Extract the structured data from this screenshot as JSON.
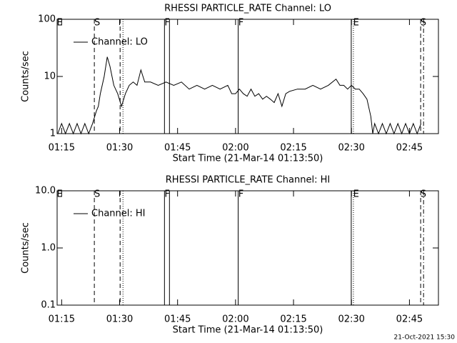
{
  "chart_data": [
    {
      "type": "line",
      "title": "RHESSI PARTICLE_RATE Channel: LO",
      "xlabel": "Start Time (21-Mar-14 01:13:50)",
      "ylabel": "Counts/sec",
      "ylog": true,
      "ylim": [
        1,
        100
      ],
      "yticks": [
        1,
        10,
        100
      ],
      "xlim": [
        73.83,
        172.5
      ],
      "xticks": [
        {
          "value": 75,
          "label": "01:15"
        },
        {
          "value": 90,
          "label": "01:30"
        },
        {
          "value": 105,
          "label": "01:45"
        },
        {
          "value": 120,
          "label": "02:00"
        },
        {
          "value": 135,
          "label": "02:15"
        },
        {
          "value": 150,
          "label": "02:30"
        },
        {
          "value": 165,
          "label": "02:45"
        }
      ],
      "legend": "upper left",
      "x": [
        74,
        75,
        76,
        77,
        78,
        79,
        80,
        81,
        82,
        83,
        84,
        84.5,
        85,
        86,
        86.8,
        87.5,
        88.5,
        89.5,
        90.5,
        91.5,
        92.5,
        93.5,
        94.5,
        95.5,
        96.5,
        98,
        100,
        102,
        104,
        106,
        108,
        110,
        112,
        114,
        116,
        118,
        119,
        120,
        121,
        122,
        123,
        124,
        125,
        126,
        127,
        128,
        129,
        130,
        131,
        132,
        133,
        134,
        136,
        138,
        140,
        142,
        144,
        146,
        147,
        148,
        149,
        150,
        151,
        152,
        153,
        154,
        155,
        155.5,
        156,
        157,
        158,
        159,
        160,
        161,
        162,
        163,
        164,
        165,
        166,
        167,
        168
      ],
      "series": [
        {
          "name": "Channel: LO",
          "color": "#000000",
          "values": [
            1,
            1.5,
            1,
            1.5,
            1,
            1.5,
            1,
            1.5,
            1,
            1.5,
            2.5,
            3,
            5,
            10,
            22,
            15,
            7,
            5,
            3,
            5,
            7,
            8,
            7,
            13,
            8,
            8,
            7,
            8,
            7,
            8,
            6,
            7,
            6,
            7,
            6,
            7,
            5,
            5,
            6,
            5,
            4.5,
            6,
            4.5,
            5,
            4,
            4.5,
            4,
            3.5,
            5,
            3,
            5,
            5.5,
            6,
            6,
            7,
            6,
            7,
            9,
            7,
            7,
            6,
            7,
            6,
            6,
            5,
            4,
            2,
            1,
            1.5,
            1,
            1.5,
            1,
            1.5,
            1,
            1.5,
            1,
            1.5,
            1,
            1.5,
            1,
            1.5
          ]
        }
      ],
      "markers": [
        {
          "x": 83.46,
          "style": "dashed"
        },
        {
          "x": 90.13,
          "style": "dashed"
        },
        {
          "x": 90.87,
          "style": "dotted"
        },
        {
          "x": 101.61,
          "style": "solid"
        },
        {
          "x": 102.9,
          "style": "solid"
        },
        {
          "x": 120.68,
          "style": "solid"
        },
        {
          "x": 149.94,
          "style": "solid"
        },
        {
          "x": 150.5,
          "style": "dotted"
        },
        {
          "x": 167.9,
          "style": "dashed"
        },
        {
          "x": 168.65,
          "style": "dashdot"
        }
      ],
      "marker_labels": [
        {
          "x": 74.5,
          "text": "E"
        },
        {
          "x": 84.2,
          "text": "S"
        },
        {
          "x": 102.3,
          "text": "F"
        },
        {
          "x": 121.4,
          "text": "F"
        },
        {
          "x": 151.2,
          "text": "E"
        },
        {
          "x": 168.6,
          "text": "S"
        }
      ]
    },
    {
      "type": "line",
      "title": "RHESSI PARTICLE_RATE Channel: HI",
      "xlabel": "Start Time (21-Mar-14 01:13:50)",
      "ylabel": "Counts/sec",
      "ylog": true,
      "ylim": [
        0.1,
        10
      ],
      "yticks": [
        {
          "value": 0.1,
          "label": "0.1"
        },
        {
          "value": 1,
          "label": "1.0"
        },
        {
          "value": 10,
          "label": "10.0"
        }
      ],
      "xlim": [
        73.83,
        172.5
      ],
      "xticks": [
        {
          "value": 75,
          "label": "01:15"
        },
        {
          "value": 90,
          "label": "01:30"
        },
        {
          "value": 105,
          "label": "01:45"
        },
        {
          "value": 120,
          "label": "02:00"
        },
        {
          "value": 135,
          "label": "02:15"
        },
        {
          "value": 150,
          "label": "02:30"
        },
        {
          "value": 165,
          "label": "02:45"
        }
      ],
      "legend": "upper left",
      "x": [],
      "series": [
        {
          "name": "Channel: HI",
          "color": "#000000",
          "values": []
        }
      ],
      "markers": [
        {
          "x": 83.46,
          "style": "dashed"
        },
        {
          "x": 90.13,
          "style": "dashed"
        },
        {
          "x": 90.87,
          "style": "dotted"
        },
        {
          "x": 101.61,
          "style": "solid"
        },
        {
          "x": 102.9,
          "style": "solid"
        },
        {
          "x": 120.68,
          "style": "solid"
        },
        {
          "x": 149.94,
          "style": "solid"
        },
        {
          "x": 150.5,
          "style": "dotted"
        },
        {
          "x": 167.9,
          "style": "dashed"
        },
        {
          "x": 168.65,
          "style": "dashdot"
        }
      ],
      "marker_labels": [
        {
          "x": 74.5,
          "text": "E"
        },
        {
          "x": 84.2,
          "text": "S"
        },
        {
          "x": 102.3,
          "text": "F"
        },
        {
          "x": 121.4,
          "text": "F"
        },
        {
          "x": 151.2,
          "text": "E"
        },
        {
          "x": 168.6,
          "text": "S"
        }
      ]
    }
  ],
  "footer": "21-Oct-2021 15:30"
}
